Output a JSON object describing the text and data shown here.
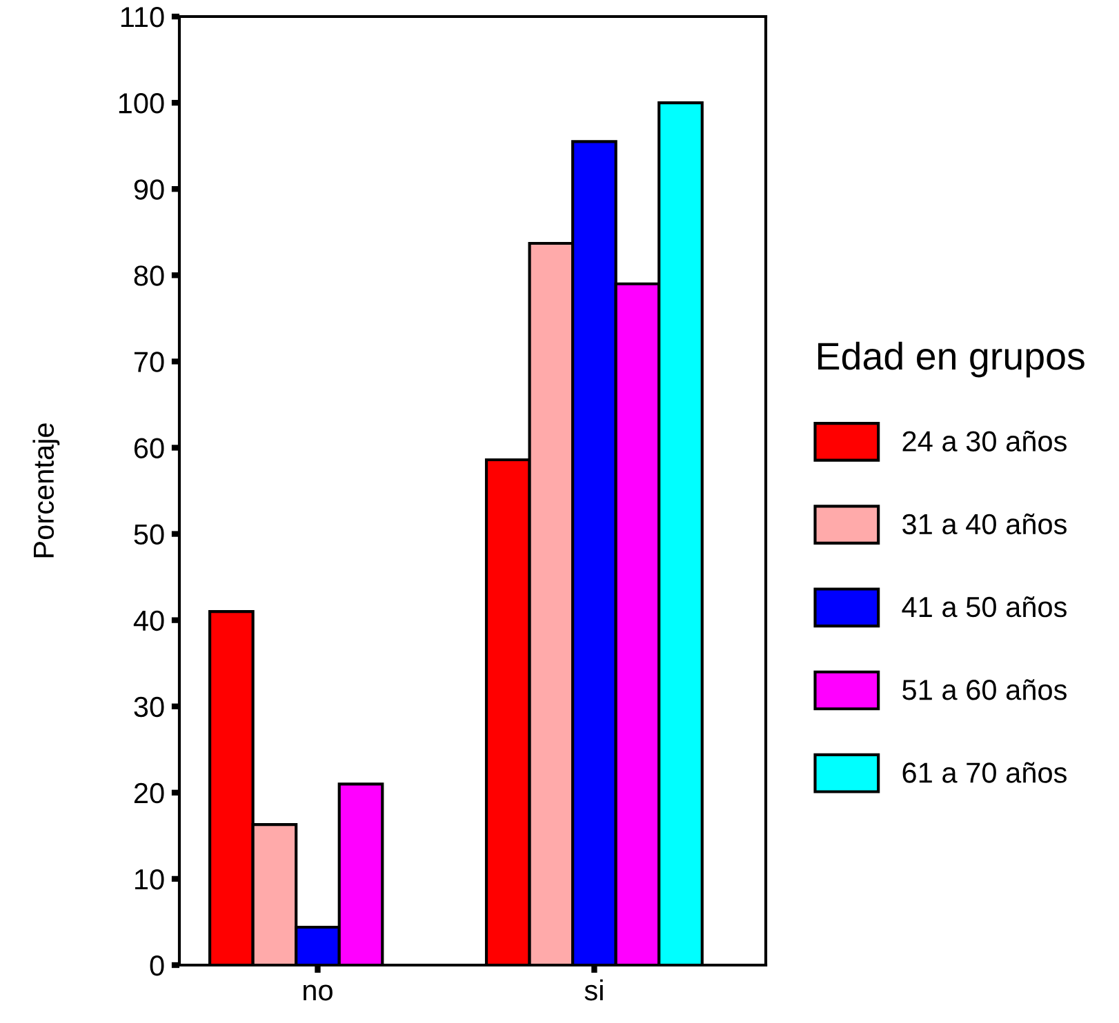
{
  "chart_data": {
    "type": "bar",
    "ylabel": "Porcentaje",
    "legend_title": "Edad en grupos",
    "legend": "right",
    "categories": [
      "no",
      "si"
    ],
    "series": [
      {
        "name": "24 a 30 años",
        "color": "#ff0000",
        "values": [
          41.0,
          58.6
        ]
      },
      {
        "name": "31 a 40 años",
        "color": "#ffaaaa",
        "values": [
          16.3,
          83.7
        ]
      },
      {
        "name": "41 a 50 años",
        "color": "#0000ff",
        "values": [
          4.4,
          95.5
        ]
      },
      {
        "name": "51 a 60 años",
        "color": "#ff00ff",
        "values": [
          21.0,
          79.0
        ]
      },
      {
        "name": "61 a 70 años",
        "color": "#00ffff",
        "values": [
          null,
          100
        ]
      }
    ],
    "ylim": [
      0,
      110
    ],
    "yticks": [
      0,
      10,
      20,
      30,
      40,
      50,
      60,
      70,
      80,
      90,
      100,
      110
    ],
    "grid": false
  }
}
